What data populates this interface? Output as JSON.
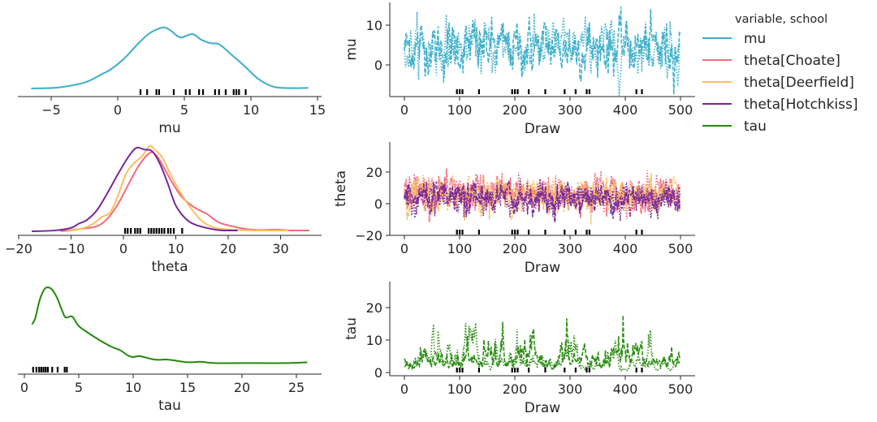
{
  "chart_data": {
    "type": "line",
    "legend": {
      "title": "variable, school",
      "placement": "right",
      "entries": [
        {
          "name": "mu",
          "color": "#3aaec9"
        },
        {
          "name": "theta[Choate]",
          "color": "#f46a7b"
        },
        {
          "name": "theta[Deerfield]",
          "color": "#fbbd5f"
        },
        {
          "name": "theta[Hotchkiss]",
          "color": "#76279a"
        },
        {
          "name": "tau",
          "color": "#23880b"
        }
      ]
    },
    "kde_panels": [
      {
        "xlabel": "mu",
        "xticks": [
          "−5",
          "0",
          "5",
          "10",
          "15"
        ],
        "xtick_values": [
          -5,
          0,
          5,
          10,
          15
        ],
        "curves": [
          {
            "series": "mu",
            "points": [
              [
                -6.5,
                0.02
              ],
              [
                -4.5,
                0.03
              ],
              [
                -2.5,
                0.09
              ],
              [
                -1.2,
                0.19
              ],
              [
                -0.5,
                0.25
              ],
              [
                0.5,
                0.38
              ],
              [
                1.5,
                0.55
              ],
              [
                2.3,
                0.67
              ],
              [
                3,
                0.73
              ],
              [
                3.5,
                0.75
              ],
              [
                4,
                0.71
              ],
              [
                4.7,
                0.63
              ],
              [
                5.6,
                0.67
              ],
              [
                6.3,
                0.6
              ],
              [
                7,
                0.56
              ],
              [
                7.6,
                0.55
              ],
              [
                8.5,
                0.43
              ],
              [
                9.5,
                0.29
              ],
              [
                10.5,
                0.14
              ],
              [
                11.5,
                0.05
              ],
              [
                12.5,
                0.025
              ],
              [
                14.3,
                0.025
              ]
            ]
          }
        ],
        "rug": [
          1.7,
          2.2,
          2.9,
          3.1,
          4.2,
          5.1,
          5.4,
          6.1,
          6.4,
          7.3,
          7.6,
          8.1,
          8.7,
          8.9,
          9.1,
          9.6
        ]
      },
      {
        "xlabel": "theta",
        "xticks": [
          "−20",
          "−10",
          "0",
          "10",
          "20",
          "30"
        ],
        "xtick_values": [
          -20,
          -10,
          0,
          10,
          20,
          30
        ],
        "curves": [
          {
            "series": "theta[Choate]",
            "points": [
              [
                -12,
                0.0
              ],
              [
                -8,
                0.03
              ],
              [
                -5,
                0.06
              ],
              [
                -3,
                0.15
              ],
              [
                -1,
                0.32
              ],
              [
                1,
                0.55
              ],
              [
                3,
                0.77
              ],
              [
                5,
                0.91
              ],
              [
                6,
                0.9
              ],
              [
                7,
                0.82
              ],
              [
                9,
                0.6
              ],
              [
                11,
                0.41
              ],
              [
                13,
                0.3
              ],
              [
                15,
                0.23
              ],
              [
                16,
                0.2
              ],
              [
                18,
                0.11
              ],
              [
                20,
                0.07
              ],
              [
                23,
                0.03
              ],
              [
                26,
                0.015
              ],
              [
                29,
                0.02
              ],
              [
                32,
                0.01
              ],
              [
                35.5,
                0.01
              ]
            ]
          },
          {
            "series": "theta[Deerfield]",
            "points": [
              [
                -11,
                0.0
              ],
              [
                -8,
                0.03
              ],
              [
                -6,
                0.08
              ],
              [
                -4,
                0.17
              ],
              [
                -2.5,
                0.22
              ],
              [
                -1,
                0.42
              ],
              [
                0.5,
                0.67
              ],
              [
                2,
                0.79
              ],
              [
                3.5,
                0.87
              ],
              [
                5,
                0.99
              ],
              [
                6,
                0.95
              ],
              [
                7.5,
                0.85
              ],
              [
                9,
                0.66
              ],
              [
                11,
                0.44
              ],
              [
                13,
                0.26
              ],
              [
                15,
                0.12
              ],
              [
                17,
                0.05
              ],
              [
                20,
                0.02
              ],
              [
                25,
                0.01
              ],
              [
                31.5,
                0.01
              ]
            ]
          },
          {
            "series": "theta[Hotchkiss]",
            "points": [
              [
                -17.5,
                0.0
              ],
              [
                -13,
                0.01
              ],
              [
                -10,
                0.04
              ],
              [
                -8.5,
                0.09
              ],
              [
                -7,
                0.13
              ],
              [
                -5,
                0.25
              ],
              [
                -3,
                0.45
              ],
              [
                -1,
                0.67
              ],
              [
                1,
                0.87
              ],
              [
                2.5,
                0.97
              ],
              [
                4,
                0.95
              ],
              [
                5.5,
                0.93
              ],
              [
                7,
                0.78
              ],
              [
                8.5,
                0.55
              ],
              [
                10,
                0.3
              ],
              [
                12,
                0.14
              ],
              [
                14,
                0.07
              ],
              [
                17,
                0.025
              ],
              [
                19,
                0.01
              ],
              [
                21.8,
                0.01
              ]
            ]
          }
        ],
        "rug": [
          0.3,
          0.8,
          1.4,
          2.2,
          2.7,
          3.2,
          4.8,
          5.3,
          5.8,
          6.3,
          6.8,
          7.3,
          7.8,
          8.5,
          9.0,
          9.6,
          11.2
        ]
      },
      {
        "xlabel": "tau",
        "xticks": [
          "0",
          "5",
          "10",
          "15",
          "20",
          "25"
        ],
        "xtick_values": [
          0,
          5,
          10,
          15,
          20,
          25
        ],
        "curves": [
          {
            "series": "tau",
            "points": [
              [
                0.7,
                0.55
              ],
              [
                1.0,
                0.62
              ],
              [
                1.4,
                0.83
              ],
              [
                1.8,
                0.95
              ],
              [
                2.1,
                0.98
              ],
              [
                2.5,
                0.96
              ],
              [
                3,
                0.86
              ],
              [
                3.5,
                0.7
              ],
              [
                3.8,
                0.63
              ],
              [
                4.4,
                0.64
              ],
              [
                5,
                0.53
              ],
              [
                6,
                0.44
              ],
              [
                7,
                0.36
              ],
              [
                8,
                0.29
              ],
              [
                8.8,
                0.25
              ],
              [
                9.5,
                0.19
              ],
              [
                10,
                0.17
              ],
              [
                10.6,
                0.18
              ],
              [
                12,
                0.14
              ],
              [
                13.2,
                0.14
              ],
              [
                15,
                0.11
              ],
              [
                16.2,
                0.115
              ],
              [
                17.5,
                0.1
              ],
              [
                20,
                0.1
              ],
              [
                24,
                0.1
              ],
              [
                26,
                0.11
              ]
            ]
          }
        ],
        "rug": [
          0.8,
          1.1,
          1.35,
          1.55,
          1.75,
          1.95,
          2.15,
          2.55,
          3.05,
          3.7,
          3.9
        ]
      }
    ],
    "trace_panels": [
      {
        "ylabel": "mu",
        "xlabel": "Draw",
        "series": [
          "mu"
        ],
        "yticks": [
          "0",
          "10"
        ],
        "ytick_values": [
          0,
          10
        ],
        "ylim": [
          -7.5,
          15
        ]
      },
      {
        "ylabel": "theta",
        "xlabel": "Draw",
        "series": [
          "theta[Choate]",
          "theta[Deerfield]",
          "theta[Hotchkiss]"
        ],
        "yticks": [
          "−20",
          "0",
          "20"
        ],
        "ytick_values": [
          -20,
          0,
          20
        ],
        "ylim": [
          -20,
          39
        ]
      },
      {
        "ylabel": "tau",
        "xlabel": "Draw",
        "series": [
          "tau"
        ],
        "yticks": [
          "0",
          "10",
          "20"
        ],
        "ytick_values": [
          0,
          10,
          20
        ],
        "ylim": [
          0,
          27
        ]
      }
    ],
    "trace_xticks": [
      "0",
      "100",
      "200",
      "300",
      "400",
      "500"
    ],
    "trace_xtick_values": [
      0,
      100,
      200,
      300,
      400,
      500
    ],
    "draws": 500,
    "chains": 2,
    "divergence_draws": [
      95,
      100,
      105,
      135,
      195,
      200,
      205,
      225,
      255,
      290,
      310,
      330,
      335,
      420,
      430
    ]
  }
}
